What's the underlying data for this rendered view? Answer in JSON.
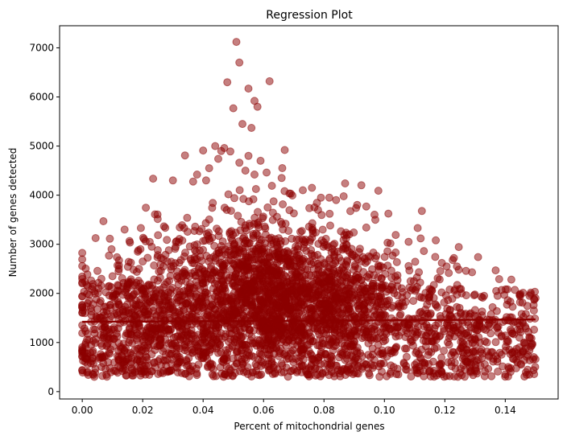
{
  "chart_data": {
    "type": "scatter",
    "title": "Regression Plot",
    "xlabel": "Percent of mitochondrial genes",
    "ylabel": "Number of genes detected",
    "xlim": [
      -0.0075,
      0.1575
    ],
    "ylim": [
      -150,
      7450
    ],
    "xticks": [
      0.0,
      0.02,
      0.04,
      0.06,
      0.08,
      0.1,
      0.12,
      0.14
    ],
    "xtick_labels": [
      "0.00",
      "0.02",
      "0.04",
      "0.06",
      "0.08",
      "0.10",
      "0.12",
      "0.14"
    ],
    "yticks": [
      0,
      1000,
      2000,
      3000,
      4000,
      5000,
      6000,
      7000
    ],
    "ytick_labels": [
      "0",
      "1000",
      "2000",
      "3000",
      "4000",
      "5000",
      "6000",
      "7000"
    ],
    "grid": false,
    "legend": "none",
    "point_color": "#8b0000",
    "point_alpha": 0.5,
    "regression_line": {
      "x": [
        0.0,
        0.15
      ],
      "y": [
        1420,
        1470
      ],
      "color": "#8b0000"
    },
    "series": [
      {
        "values": [
          [
            0.051,
            7120
          ],
          [
            0.052,
            6700
          ],
          [
            0.048,
            6300
          ],
          [
            0.062,
            6320
          ],
          [
            0.055,
            6170
          ],
          [
            0.057,
            5920
          ],
          [
            0.058,
            5800
          ],
          [
            0.05,
            5770
          ],
          [
            0.053,
            5450
          ],
          [
            0.056,
            5370
          ],
          [
            0.044,
            5000
          ],
          [
            0.067,
            4920
          ],
          [
            0.047,
            4960
          ],
          [
            0.049,
            4890
          ],
          [
            0.046,
            4900
          ],
          [
            0.04,
            4910
          ],
          [
            0.034,
            4810
          ],
          [
            0.055,
            4800
          ],
          [
            0.052,
            4660
          ],
          [
            0.045,
            4740
          ],
          [
            0.059,
            4700
          ],
          [
            0.042,
            4550
          ],
          [
            0.054,
            4500
          ],
          [
            0.061,
            4460
          ],
          [
            0.057,
            4420
          ],
          [
            0.038,
            4420
          ],
          [
            0.041,
            4300
          ],
          [
            0.03,
            4300
          ],
          [
            0.087,
            4240
          ],
          [
            0.076,
            4150
          ],
          [
            0.066,
            4350
          ],
          [
            0.098,
            4090
          ],
          [
            0.073,
            4100
          ],
          [
            0.069,
            4030
          ],
          [
            0.079,
            3950
          ],
          [
            0.084,
            3900
          ],
          [
            0.091,
            3800
          ],
          [
            0.094,
            3770
          ],
          [
            0.097,
            3500
          ],
          [
            0.094,
            3340
          ],
          [
            0.111,
            3330
          ],
          [
            0.108,
            3050
          ],
          [
            0.112,
            3120
          ],
          [
            0.117,
            3080
          ],
          [
            0.123,
            2720
          ],
          [
            0.131,
            2740
          ],
          [
            0.124,
            2550
          ],
          [
            0.129,
            2430
          ],
          [
            0.127,
            2460
          ],
          [
            0.138,
            2290
          ],
          [
            0.142,
            2280
          ],
          [
            0.119,
            2620
          ],
          [
            0.133,
            1950
          ],
          [
            0.137,
            2050
          ],
          [
            0.145,
            1990
          ],
          [
            0.148,
            1950
          ],
          [
            0.14,
            1450
          ],
          [
            0.146,
            1520
          ],
          [
            0.149,
            970
          ],
          [
            0.15,
            660
          ],
          [
            0.146,
            820
          ],
          [
            0.141,
            500
          ],
          [
            0.136,
            610
          ],
          [
            0.13,
            430
          ],
          [
            0.125,
            380
          ],
          [
            0.0,
            2220
          ],
          [
            0.007,
            3470
          ],
          [
            0.014,
            3300
          ],
          [
            0.01,
            2350
          ],
          [
            0.012,
            2450
          ],
          [
            0.005,
            1480
          ],
          [
            0.003,
            1560
          ],
          [
            0.001,
            950
          ],
          [
            0.0,
            780
          ],
          [
            0.0,
            440
          ],
          [
            0.002,
            340
          ],
          [
            0.004,
            300
          ],
          [
            0.021,
            3060
          ],
          [
            0.023,
            2950
          ],
          [
            0.028,
            3090
          ],
          [
            0.025,
            2880
          ],
          [
            0.02,
            2650
          ],
          [
            0.017,
            2480
          ],
          [
            0.009,
            2150
          ],
          [
            0.011,
            1980
          ]
        ]
      }
    ]
  }
}
